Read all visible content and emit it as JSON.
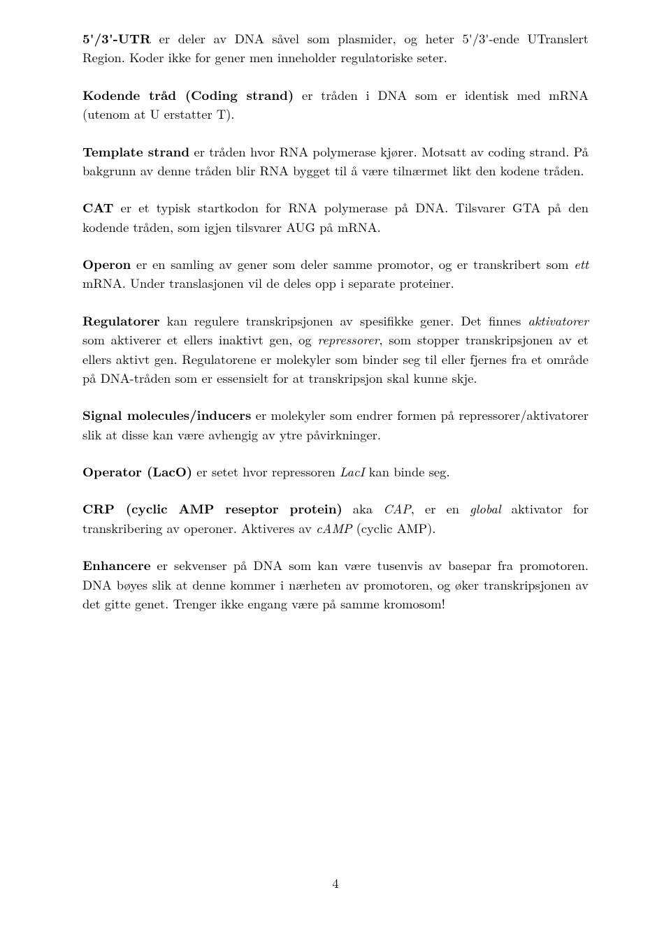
{
  "paragraphs": {
    "p1_bold": "5'/3'-UTR",
    "p1_rest": " er deler av DNA såvel som plasmider, og heter 5'/3'-ende UTranslert Region. Koder ikke for gener men inneholder regulatoriske seter.",
    "p2_bold": "Kodende tråd (Coding strand)",
    "p2_rest": " er tråden i DNA som er identisk med mRNA (utenom at U erstatter T).",
    "p3_bold": "Template strand",
    "p3_rest": " er tråden hvor RNA polymerase kjører. Motsatt av coding strand. På bakgrunn av denne tråden blir RNA bygget til å være tilnærmet likt den kodene tråden.",
    "p4_bold": "CAT",
    "p4_rest": " er et typisk startkodon for RNA polymerase på DNA. Tilsvarer GTA på den kodende tråden, som igjen tilsvarer AUG på mRNA.",
    "p5_bold": "Operon",
    "p5_mid1": " er en samling av gener som deler samme promotor, og er transkribert som ",
    "p5_italic": "ett",
    "p5_rest": " mRNA. Under translasjonen vil de deles opp i separate proteiner.",
    "p6_bold": "Regulatorer",
    "p6_mid1": " kan regulere transkripsjonen av spesifikke gener. Det finnes ",
    "p6_it1": "aktivatorer",
    "p6_mid2": " som aktiverer et ellers inaktivt gen, og ",
    "p6_it2": "repressorer",
    "p6_rest": ", som stopper transkripsjonen av et ellers aktivt gen. Regulatorene er molekyler som binder seg til eller fjernes fra et område på DNA-tråden som er essensielt for at transkripsjon skal kunne skje.",
    "p7_bold": "Signal molecules/inducers",
    "p7_rest": " er molekyler som endrer formen på repressorer/aktivatorer slik at disse kan være avhengig av ytre påvirkninger.",
    "p8_bold": "Operator (LacO)",
    "p8_mid1": " er setet hvor repressoren ",
    "p8_it1": "LacI",
    "p8_rest": " kan binde seg.",
    "p9_bold": "CRP (cyclic AMP reseptor protein)",
    "p9_mid1": " aka ",
    "p9_it1": "CAP",
    "p9_mid2": ", er en ",
    "p9_it2": "global",
    "p9_mid3": " aktivator for transkribering av operoner. Aktiveres av ",
    "p9_it3": "cAMP",
    "p9_rest": " (cyclic AMP).",
    "p10_bold": "Enhancere",
    "p10_rest": " er sekvenser på DNA som kan være tusenvis av basepar fra promotoren. DNA bøyes slik at denne kommer i nærheten av promotoren, og øker transkripsjonen av det gitte genet. Trenger ikke engang være på samme kromosom!"
  },
  "page_number": "4"
}
